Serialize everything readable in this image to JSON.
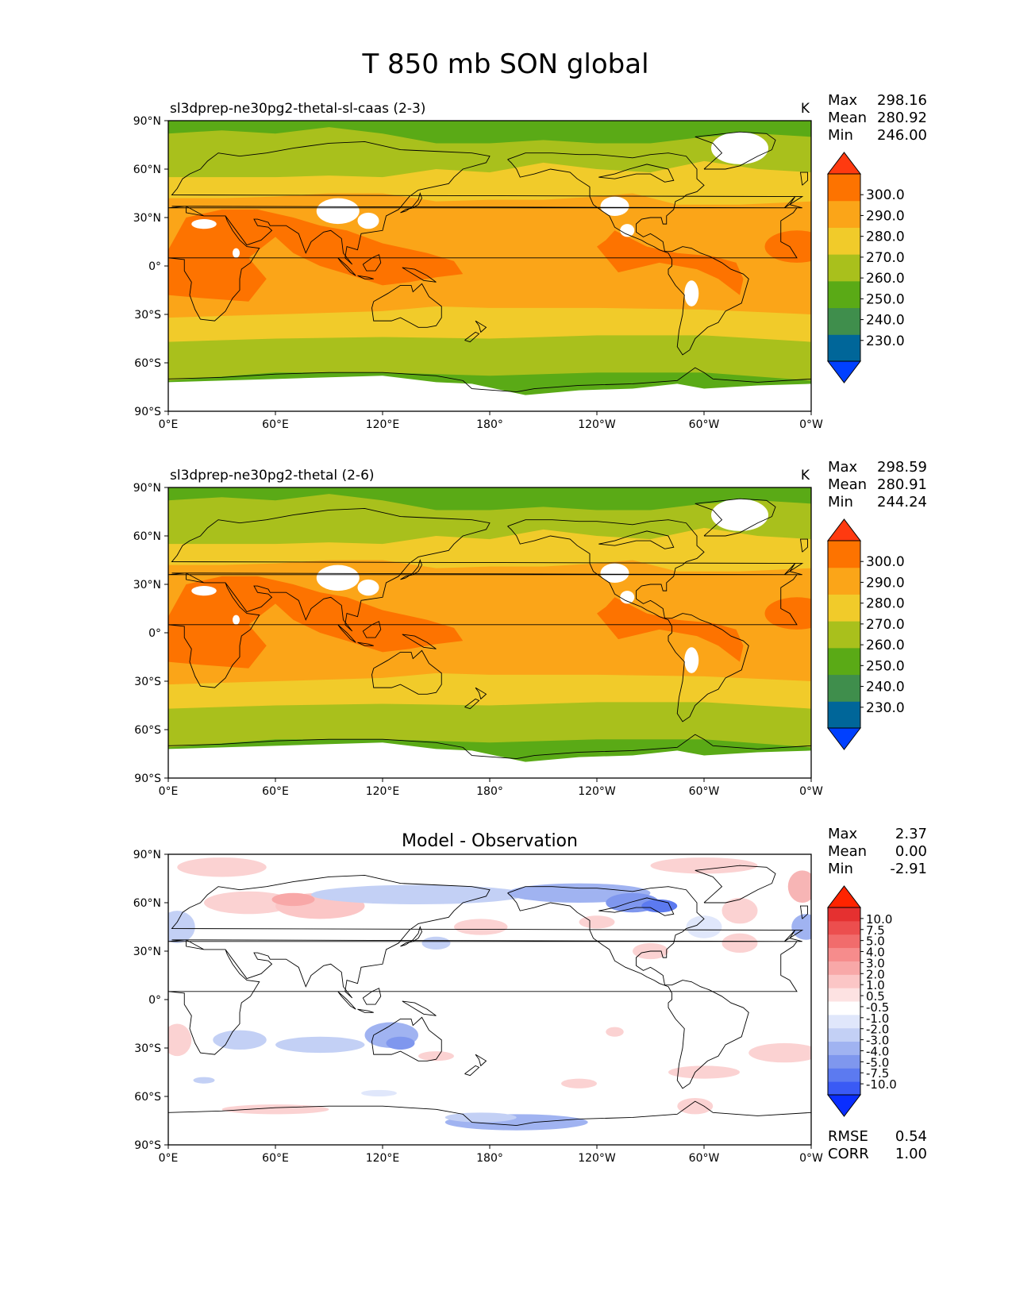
{
  "title": "T 850 mb SON global",
  "colors": {
    "base": [
      "#0040ff",
      "#006699",
      "#3f8e4c",
      "#5aaa16",
      "#a9c01c",
      "#f1cb2a",
      "#fba518",
      "#fd7300",
      "#ff3a10"
    ],
    "diff": [
      "#0a2eff",
      "#3a5af5",
      "#5c7af0",
      "#7f97ee",
      "#a0b3f1",
      "#c3d0f5",
      "#e0e7fb",
      "#ffffff",
      "#fde2e2",
      "#fbc6c6",
      "#f8a8a8",
      "#f68c8c",
      "#f16c6c",
      "#ec4e4e",
      "#e53030",
      "#ff2400"
    ],
    "land": "#000000"
  },
  "panels": [
    {
      "id": "test",
      "title_left": "sl3dprep-ne30pg2-thetal-sl-caas (2-3)",
      "title_center": "",
      "units": "K",
      "stats": [
        {
          "label": "Max",
          "value": "298.16"
        },
        {
          "label": "Mean",
          "value": "280.92"
        },
        {
          "label": "Min",
          "value": "246.00"
        }
      ],
      "colorbar": {
        "ticks": [
          "300.0",
          "290.0",
          "280.0",
          "270.0",
          "260.0",
          "250.0",
          "240.0",
          "230.0"
        ]
      },
      "metrics": []
    },
    {
      "id": "reference",
      "title_left": "sl3dprep-ne30pg2-thetal (2-6)",
      "title_center": "",
      "units": "K",
      "stats": [
        {
          "label": "Max",
          "value": "298.59"
        },
        {
          "label": "Mean",
          "value": "280.91"
        },
        {
          "label": "Min",
          "value": "244.24"
        }
      ],
      "colorbar": {
        "ticks": [
          "300.0",
          "290.0",
          "280.0",
          "270.0",
          "260.0",
          "250.0",
          "240.0",
          "230.0"
        ]
      },
      "metrics": []
    },
    {
      "id": "diff",
      "title_left": "",
      "title_center": "Model - Observation",
      "units": "",
      "stats": [
        {
          "label": "Max",
          "value": "2.37"
        },
        {
          "label": "Mean",
          "value": "0.00"
        },
        {
          "label": "Min",
          "value": "-2.91"
        }
      ],
      "colorbar": {
        "ticks": [
          "10.0",
          "7.5",
          "5.0",
          "4.0",
          "3.0",
          "2.0",
          "1.0",
          "0.5",
          "-0.5",
          "-1.0",
          "-2.0",
          "-3.0",
          "-4.0",
          "-5.0",
          "-7.5",
          "-10.0"
        ]
      },
      "metrics": [
        {
          "label": "RMSE",
          "value": "0.54"
        },
        {
          "label": "CORR",
          "value": "1.00"
        }
      ]
    }
  ],
  "axes": {
    "lat_ticks": [
      "90°N",
      "60°N",
      "30°N",
      "0°",
      "30°S",
      "60°S",
      "90°S"
    ],
    "lon_ticks": [
      "0°E",
      "60°E",
      "120°E",
      "180°",
      "120°W",
      "60°W",
      "0°W"
    ]
  }
}
